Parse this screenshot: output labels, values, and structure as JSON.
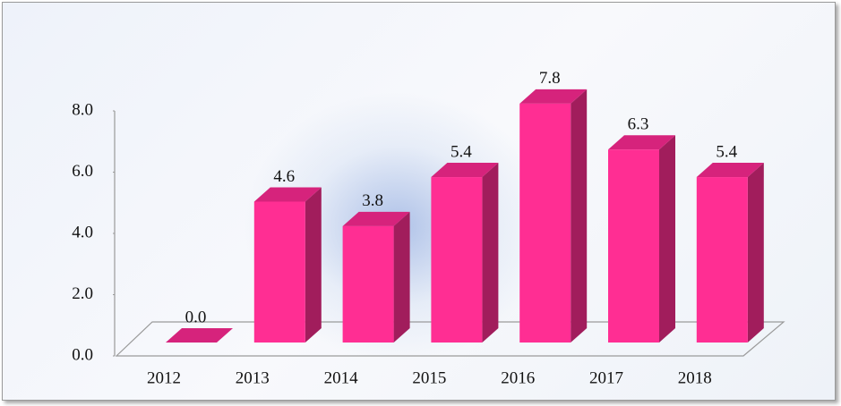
{
  "chart_data": {
    "type": "bar",
    "categories": [
      "2012",
      "2013",
      "2014",
      "2015",
      "2016",
      "2017",
      "2018"
    ],
    "values": [
      0,
      4.6,
      3.8,
      5.4,
      7.8,
      6.3,
      5.4
    ],
    "value_labels": [
      "0.0",
      "4.6",
      "3.8",
      "5.4",
      "7.8",
      "6.3",
      "5.4"
    ],
    "color": "#ff2e93",
    "ylim": [
      0,
      8
    ],
    "yticks": [
      {
        "value": 0,
        "label": "0.0"
      },
      {
        "value": 2,
        "label": "2.0"
      },
      {
        "value": 4,
        "label": "4.0"
      },
      {
        "value": 6,
        "label": "6.0"
      },
      {
        "value": 8,
        "label": "8.0"
      }
    ],
    "grid": false
  }
}
